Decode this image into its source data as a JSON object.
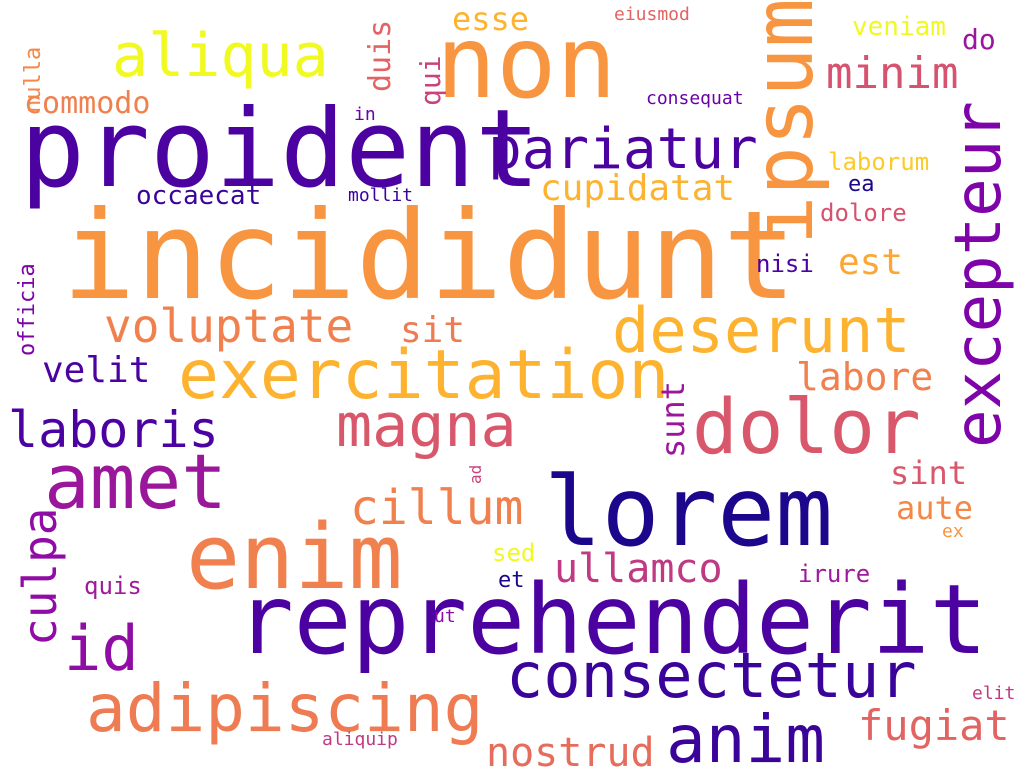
{
  "words": [
    {
      "text": "incididunt",
      "color": "#f89540",
      "vertical": false
    },
    {
      "text": "reprehenderit",
      "color": "#4c02a1",
      "vertical": false
    },
    {
      "text": "proident",
      "color": "#4c02a1",
      "vertical": false
    },
    {
      "text": "non",
      "color": "#f89540",
      "vertical": false
    },
    {
      "text": "lorem",
      "color": "#1b068c",
      "vertical": false
    },
    {
      "text": "enim",
      "color": "#f0804e",
      "vertical": false
    },
    {
      "text": "amet",
      "color": "#9a179b",
      "vertical": false
    },
    {
      "text": "dolor",
      "color": "#d8576b",
      "vertical": false
    },
    {
      "text": "ipsum",
      "color": "#f89540",
      "vertical": true
    },
    {
      "text": "excepteur",
      "color": "#7e03a8",
      "vertical": true
    },
    {
      "text": "exercitation",
      "color": "#fdb32f",
      "vertical": false
    },
    {
      "text": "deserunt",
      "color": "#fdb32f",
      "vertical": false
    },
    {
      "text": "consectetur",
      "color": "#3a049a",
      "vertical": false
    },
    {
      "text": "adipiscing",
      "color": "#ee7b51",
      "vertical": false
    },
    {
      "text": "anim",
      "color": "#3a049a",
      "vertical": false
    },
    {
      "text": "aliqua",
      "color": "#f0f921",
      "vertical": false
    },
    {
      "text": "pariatur",
      "color": "#4c02a1",
      "vertical": false
    },
    {
      "text": "magna",
      "color": "#d8576b",
      "vertical": false
    },
    {
      "text": "id",
      "color": "#8f0da4",
      "vertical": false
    },
    {
      "text": "laboris",
      "color": "#4c02a1",
      "vertical": false
    },
    {
      "text": "voluptate",
      "color": "#f0804e",
      "vertical": false
    },
    {
      "text": "minim",
      "color": "#d5536f",
      "vertical": false
    },
    {
      "text": "cillum",
      "color": "#f0804e",
      "vertical": false
    },
    {
      "text": "culpa",
      "color": "#8f0da4",
      "vertical": true
    },
    {
      "text": "ullamco",
      "color": "#c03a83",
      "vertical": false
    },
    {
      "text": "fugiat",
      "color": "#e16462",
      "vertical": false
    },
    {
      "text": "nostrud",
      "color": "#e66c5c",
      "vertical": false
    },
    {
      "text": "cupidatat",
      "color": "#fdb32f",
      "vertical": false
    },
    {
      "text": "labore",
      "color": "#f0804e",
      "vertical": false
    },
    {
      "text": "velit",
      "color": "#4c02a1",
      "vertical": false
    },
    {
      "text": "sit",
      "color": "#ee7b51",
      "vertical": false
    },
    {
      "text": "est",
      "color": "#fca636",
      "vertical": false
    },
    {
      "text": "esse",
      "color": "#fdb32f",
      "vertical": false
    },
    {
      "text": "commodo",
      "color": "#f0804e",
      "vertical": false
    },
    {
      "text": "occaecat",
      "color": "#3a049a",
      "vertical": false
    },
    {
      "text": "duis",
      "color": "#e16462",
      "vertical": true
    },
    {
      "text": "qui",
      "color": "#c8437b",
      "vertical": true
    },
    {
      "text": "sunt",
      "color": "#9a179b",
      "vertical": true
    },
    {
      "text": "sint",
      "color": "#d8576b",
      "vertical": false
    },
    {
      "text": "aute",
      "color": "#f48849",
      "vertical": false
    },
    {
      "text": "dolore",
      "color": "#d5536f",
      "vertical": false
    },
    {
      "text": "laborum",
      "color": "#fdca26",
      "vertical": false
    },
    {
      "text": "veniam",
      "color": "#f0f921",
      "vertical": false
    },
    {
      "text": "do",
      "color": "#9a179b",
      "vertical": false
    },
    {
      "text": "nisi",
      "color": "#4c02a1",
      "vertical": false
    },
    {
      "text": "ea",
      "color": "#1b068c",
      "vertical": false
    },
    {
      "text": "irure",
      "color": "#a01a9c",
      "vertical": false
    },
    {
      "text": "quis",
      "color": "#a01a9c",
      "vertical": false
    },
    {
      "text": "officia",
      "color": "#7e03a8",
      "vertical": true
    },
    {
      "text": "nulla",
      "color": "#f48849",
      "vertical": true
    },
    {
      "text": "sed",
      "color": "#f0f921",
      "vertical": false
    },
    {
      "text": "et",
      "color": "#1b068c",
      "vertical": false
    },
    {
      "text": "consequat",
      "color": "#6a00a8",
      "vertical": false
    },
    {
      "text": "eiusmod",
      "color": "#e16462",
      "vertical": false
    },
    {
      "text": "in",
      "color": "#6a00a8",
      "vertical": false
    },
    {
      "text": "mollit",
      "color": "#3a049a",
      "vertical": false
    },
    {
      "text": "ad",
      "color": "#c8437b",
      "vertical": true
    },
    {
      "text": "ex",
      "color": "#f89540",
      "vertical": false
    },
    {
      "text": "ut",
      "color": "#8f0da4",
      "vertical": false
    },
    {
      "text": "elit",
      "color": "#c03a83",
      "vertical": false
    },
    {
      "text": "aliquip",
      "color": "#c03a83",
      "vertical": false
    }
  ]
}
